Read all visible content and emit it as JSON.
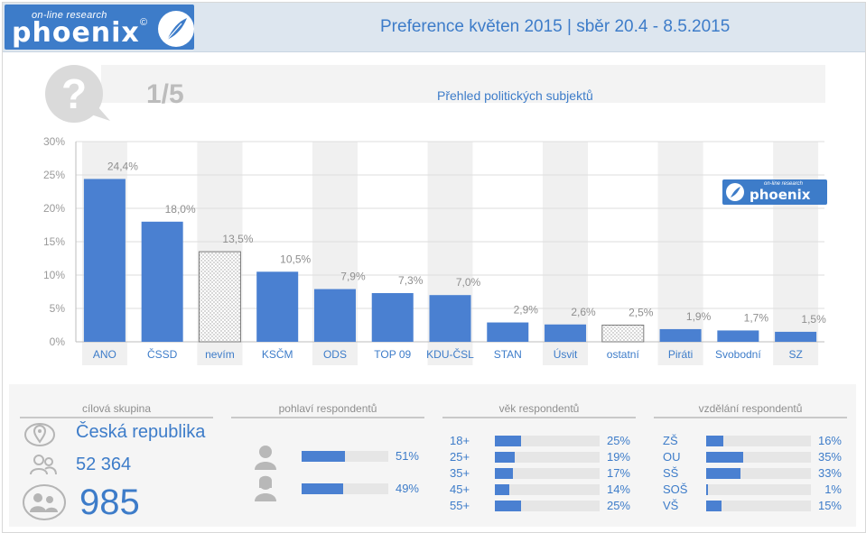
{
  "header": {
    "logo_small": "on-line research",
    "logo_main": "phoenix",
    "logo_copyright": "©",
    "title": "Preference květen 2015 |  sběr 20.4 - 8.5.2015"
  },
  "question": {
    "number": "1/5",
    "title": "Přehled politických subjektů"
  },
  "watermark": {
    "small": "on-line research",
    "main": "phoenix"
  },
  "chart_data": {
    "type": "bar",
    "categories": [
      "ANO",
      "ČSSD",
      "nevím",
      "KSČM",
      "ODS",
      "TOP 09",
      "KDU-ČSL",
      "STAN",
      "Úsvit",
      "ostatní",
      "Piráti",
      "Svobodní",
      "SZ"
    ],
    "values": [
      24.4,
      18.0,
      13.5,
      10.5,
      7.9,
      7.3,
      7.0,
      2.9,
      2.6,
      2.5,
      1.9,
      1.7,
      1.5
    ],
    "value_labels": [
      "24,4%",
      "18,0%",
      "13,5%",
      "10,5%",
      "7,9%",
      "7,3%",
      "7,0%",
      "2,9%",
      "2,6%",
      "2,5%",
      "1,9%",
      "1,7%",
      "1,5%"
    ],
    "patterned": [
      false,
      false,
      true,
      false,
      false,
      false,
      false,
      false,
      false,
      true,
      false,
      false,
      false
    ],
    "yticks": [
      "0%",
      "5%",
      "10%",
      "15%",
      "20%",
      "25%",
      "30%"
    ],
    "ylim": [
      0,
      30
    ],
    "bar_color": "#4a80d1",
    "grid": true
  },
  "target": {
    "heading": "cílová skupina",
    "country": "Česká republika",
    "panel_size": "52 364",
    "respondents": "985"
  },
  "gender": {
    "heading": "pohlaví respondentů",
    "rows": [
      {
        "icon": "male-icon",
        "value": 0.51,
        "pct": "51%"
      },
      {
        "icon": "female-icon",
        "value": 0.49,
        "pct": "49%"
      }
    ]
  },
  "age": {
    "heading": "věk respondentů",
    "rows": [
      {
        "label": "18+",
        "value": 0.25,
        "pct": "25%"
      },
      {
        "label": "25+",
        "value": 0.19,
        "pct": "19%"
      },
      {
        "label": "35+",
        "value": 0.17,
        "pct": "17%"
      },
      {
        "label": "45+",
        "value": 0.14,
        "pct": "14%"
      },
      {
        "label": "55+",
        "value": 0.25,
        "pct": "25%"
      }
    ]
  },
  "education": {
    "heading": "vzdělání respondentů",
    "rows": [
      {
        "label": "ZŠ",
        "value": 0.16,
        "pct": "16%"
      },
      {
        "label": "OU",
        "value": 0.35,
        "pct": "35%"
      },
      {
        "label": "SŠ",
        "value": 0.33,
        "pct": "33%"
      },
      {
        "label": "SOŠ",
        "value": 0.01,
        "pct": "1%"
      },
      {
        "label": "VŠ",
        "value": 0.15,
        "pct": "15%"
      }
    ]
  }
}
